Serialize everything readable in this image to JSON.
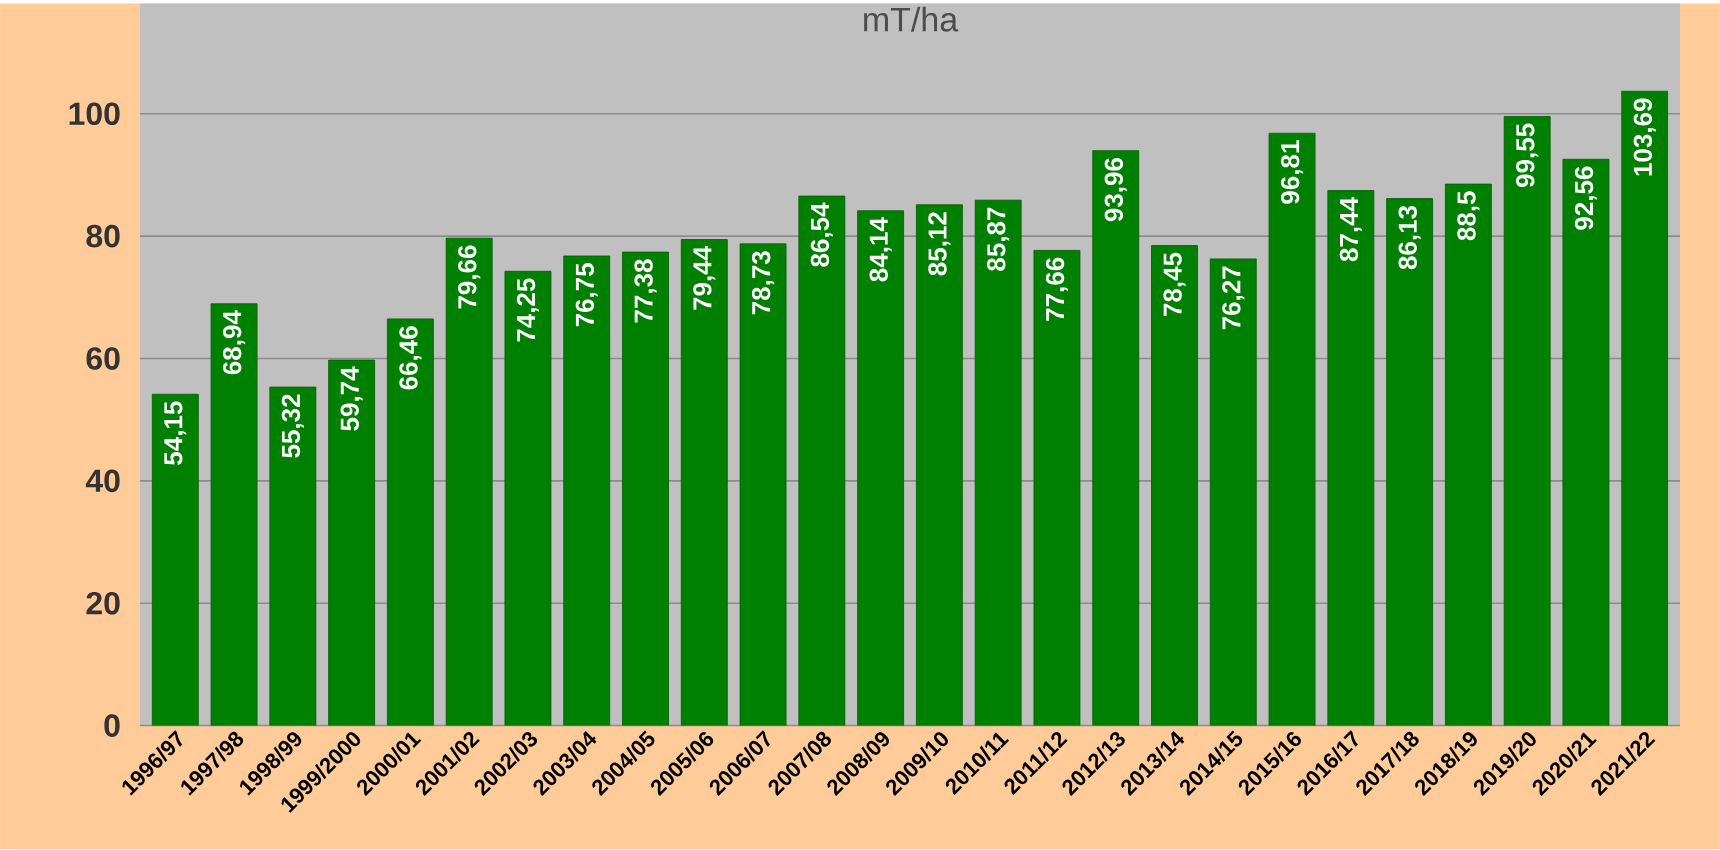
{
  "chart_data": {
    "type": "bar",
    "title": "mT/ha",
    "categories": [
      "1996/97",
      "1997/98",
      "1998/99",
      "1999/2000",
      "2000/01",
      "2001/02",
      "2002/03",
      "2003/04",
      "2004/05",
      "2005/06",
      "2006/07",
      "2007/08",
      "2008/09",
      "2009/10",
      "2010/11",
      "2011/12",
      "2012/13",
      "2013/14",
      "2014/15",
      "2015/16",
      "2016/17",
      "2017/18",
      "2018/19",
      "2019/20",
      "2020/21",
      "2021/22"
    ],
    "values": [
      54.15,
      68.94,
      55.32,
      59.74,
      66.46,
      79.66,
      74.25,
      76.75,
      77.38,
      79.44,
      78.73,
      86.54,
      84.14,
      85.12,
      85.87,
      77.66,
      93.96,
      78.45,
      76.27,
      96.81,
      87.44,
      86.13,
      88.5,
      99.55,
      92.56,
      103.69
    ],
    "value_labels": [
      "54,15",
      "68,94",
      "55,32",
      "59,74",
      "66,46",
      "79,66",
      "74,25",
      "76,75",
      "77,38",
      "79,44",
      "78,73",
      "86,54",
      "84,14",
      "85,12",
      "85,87",
      "77,66",
      "93,96",
      "78,45",
      "76,27",
      "96,81",
      "87,44",
      "86,13",
      "88,5",
      "99,55",
      "92,56",
      "103,69"
    ],
    "color": "#008000",
    "ylim": [
      0,
      118
    ],
    "yticks": [
      0,
      20,
      40,
      60,
      80,
      100
    ],
    "grid": "y"
  }
}
